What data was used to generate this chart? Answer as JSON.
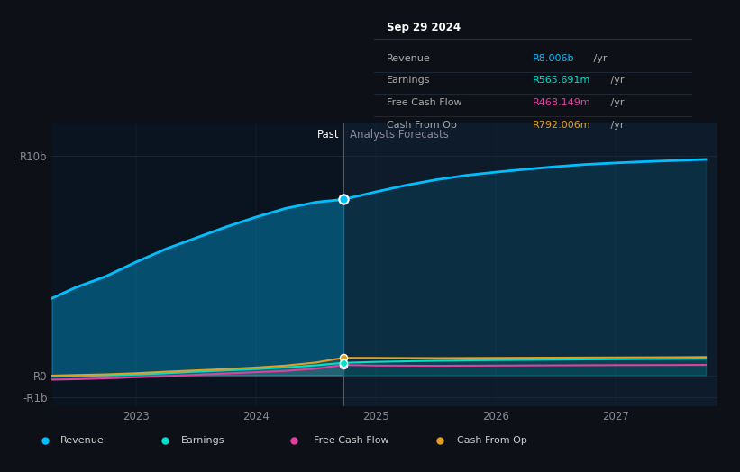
{
  "bg_color": "#0d1117",
  "plot_bg_color": "#0d1b2a",
  "past_bg_color": "#0a1520",
  "grid_color": "#1a2a3a",
  "title_tooltip": "Sep 29 2024",
  "tooltip_bg": "#0a0f1a",
  "tooltip_border": "#2a3a4a",
  "tooltip_rows": [
    {
      "label": "Revenue",
      "value": "R8.006b",
      "unit": " /yr",
      "color": "#00bfff"
    },
    {
      "label": "Earnings",
      "value": "R565.691m",
      "unit": " /yr",
      "color": "#00e0cc"
    },
    {
      "label": "Free Cash Flow",
      "value": "R468.149m",
      "unit": " /yr",
      "color": "#e040a0"
    },
    {
      "label": "Cash From Op",
      "value": "R792.006m",
      "unit": " /yr",
      "color": "#e0a020"
    }
  ],
  "past_line_x": 2024.73,
  "past_label": "Past",
  "analysts_label": "Analysts Forecasts",
  "revenue_color": "#00bfff",
  "earnings_color": "#00e0cc",
  "fcf_color": "#e040a0",
  "cashfromop_color": "#e0a020",
  "revenue_past": {
    "x": [
      2022.3,
      2022.5,
      2022.75,
      2023.0,
      2023.25,
      2023.5,
      2023.75,
      2024.0,
      2024.25,
      2024.5,
      2024.73
    ],
    "y": [
      3500000000.0,
      4000000000.0,
      4500000000.0,
      5150000000.0,
      5750000000.0,
      6250000000.0,
      6750000000.0,
      7200000000.0,
      7600000000.0,
      7880000000.0,
      8006000000.0
    ]
  },
  "revenue_future": {
    "x": [
      2024.73,
      2025.0,
      2025.25,
      2025.5,
      2025.75,
      2026.0,
      2026.25,
      2026.5,
      2026.75,
      2027.0,
      2027.25,
      2027.5,
      2027.75
    ],
    "y": [
      8006000000.0,
      8350000000.0,
      8650000000.0,
      8900000000.0,
      9100000000.0,
      9250000000.0,
      9380000000.0,
      9500000000.0,
      9600000000.0,
      9670000000.0,
      9730000000.0,
      9780000000.0,
      9830000000.0
    ]
  },
  "earnings_past": {
    "x": [
      2022.3,
      2022.5,
      2022.75,
      2023.0,
      2023.25,
      2023.5,
      2023.75,
      2024.0,
      2024.25,
      2024.5,
      2024.73
    ],
    "y": [
      -50000000.0,
      -30000000.0,
      -10000000.0,
      30000000.0,
      90000000.0,
      160000000.0,
      220000000.0,
      280000000.0,
      360000000.0,
      450000000.0,
      565700000.0
    ]
  },
  "earnings_future": {
    "x": [
      2024.73,
      2025.0,
      2025.5,
      2026.0,
      2026.5,
      2027.0,
      2027.5,
      2027.75
    ],
    "y": [
      565700000.0,
      610000000.0,
      660000000.0,
      690000000.0,
      710000000.0,
      730000000.0,
      750000000.0,
      760000000.0
    ]
  },
  "fcf_past": {
    "x": [
      2022.3,
      2022.5,
      2022.75,
      2023.0,
      2023.25,
      2023.5,
      2023.75,
      2024.0,
      2024.25,
      2024.5,
      2024.73
    ],
    "y": [
      -200000000.0,
      -180000000.0,
      -140000000.0,
      -90000000.0,
      -40000000.0,
      20000000.0,
      80000000.0,
      140000000.0,
      200000000.0,
      300000000.0,
      468000000.0
    ]
  },
  "fcf_future": {
    "x": [
      2024.73,
      2025.0,
      2025.5,
      2026.0,
      2026.5,
      2027.0,
      2027.5,
      2027.75
    ],
    "y": [
      468000000.0,
      440000000.0,
      430000000.0,
      440000000.0,
      450000000.0,
      460000000.0,
      465000000.0,
      470000000.0
    ]
  },
  "cashfromop_past": {
    "x": [
      2022.3,
      2022.5,
      2022.75,
      2023.0,
      2023.25,
      2023.5,
      2023.75,
      2024.0,
      2024.25,
      2024.5,
      2024.73
    ],
    "y": [
      -20000000.0,
      10000000.0,
      40000000.0,
      90000000.0,
      160000000.0,
      220000000.0,
      280000000.0,
      350000000.0,
      440000000.0,
      580000000.0,
      792000000.0
    ]
  },
  "cashfromop_future": {
    "x": [
      2024.73,
      2025.0,
      2025.5,
      2026.0,
      2026.5,
      2027.0,
      2027.5,
      2027.75
    ],
    "y": [
      792000000.0,
      790000000.0,
      780000000.0,
      790000000.0,
      800000000.0,
      810000000.0,
      820000000.0,
      830000000.0
    ]
  },
  "xlim": [
    2022.3,
    2027.85
  ],
  "ylim": [
    -1400000000.0,
    11500000000.0
  ],
  "y_ticks": [
    -1000000000.0,
    0,
    10000000000.0
  ],
  "y_tick_labels": [
    "-R1b",
    "R0",
    "R10b"
  ],
  "x_ticks": [
    2023,
    2024,
    2025,
    2026,
    2027
  ],
  "x_tick_labels": [
    "2023",
    "2024",
    "2025",
    "2026",
    "2027"
  ],
  "legend_items": [
    {
      "label": "Revenue",
      "color": "#00bfff"
    },
    {
      "label": "Earnings",
      "color": "#00e0cc"
    },
    {
      "label": "Free Cash Flow",
      "color": "#e040a0"
    },
    {
      "label": "Cash From Op",
      "color": "#e0a020"
    }
  ]
}
